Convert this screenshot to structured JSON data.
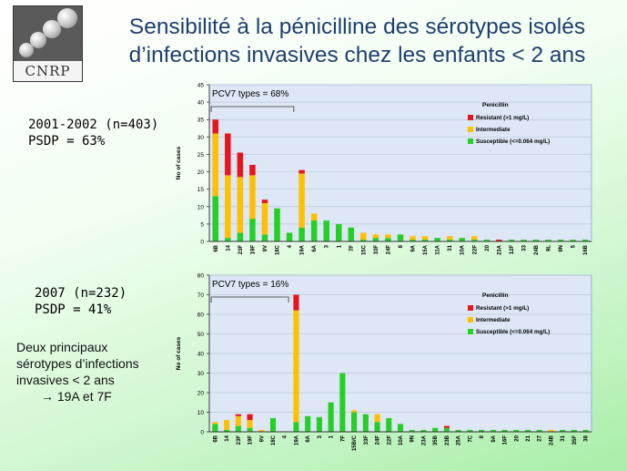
{
  "slide": {
    "title_line1": "Sensibilité à la pénicilline des sérotypes isolés",
    "title_line2": "d’infections invasives chez les enfants < 2 ans",
    "logo_text": "CNRP",
    "period1_label": "2001-2002 (n=403)",
    "period1_psdp": "PSDP = 63%",
    "period2_label": "2007 (n=232)",
    "period2_psdp": "PSDP = 41%",
    "note_lines": [
      "Deux principaux",
      "sérotypes d’infections",
      "invasives < 2 ans"
    ],
    "note_arrow": "→",
    "note_result": "19A et 7F"
  },
  "colors": {
    "resistant": "#e8141e",
    "intermediate": "#ffc000",
    "susceptible": "#25d025",
    "plot_bg": "#dde7f5",
    "title": "#1f3f6f"
  },
  "chart_data": [
    {
      "type": "bar",
      "stacked": true,
      "annotation": "PCV7 types = 68%",
      "legend_title": "Penicillin",
      "legend_position": "top-right",
      "ylabel": "No of cases",
      "ylim": [
        0,
        45
      ],
      "yticks": [
        0,
        5,
        10,
        15,
        20,
        25,
        30,
        35,
        40,
        45
      ],
      "grid": true,
      "categories": [
        "6B",
        "14",
        "23F",
        "19F",
        "9V",
        "18C",
        "4",
        "19A",
        "6A",
        "3",
        "1",
        "7F",
        "15C",
        "33F",
        "24F",
        "8",
        "9A",
        "15A",
        "11A",
        "31",
        "10A",
        "22F",
        "20",
        "23A",
        "12F",
        "33",
        "24B",
        "9L",
        "9N",
        "5",
        "16B"
      ],
      "series": [
        {
          "name": "Resistant (>1 mg/L)",
          "color_key": "resistant",
          "values": [
            4,
            12,
            7,
            3,
            1,
            0,
            0,
            1,
            0,
            0,
            0,
            0,
            0,
            0,
            0,
            0,
            0,
            0,
            0,
            0,
            0,
            0,
            0,
            0.5,
            0,
            0,
            0,
            0,
            0,
            0,
            0
          ]
        },
        {
          "name": "Intermediate",
          "color_key": "intermediate",
          "values": [
            18,
            18,
            16,
            12.5,
            9,
            0,
            0,
            15.5,
            2,
            0,
            0,
            0,
            2,
            1,
            1,
            0,
            1,
            1,
            0,
            1,
            0,
            1,
            0,
            0,
            0,
            0,
            0,
            0,
            0,
            0,
            0
          ]
        },
        {
          "name": "Susceptible (<=0.064 mg/L)",
          "color_key": "susceptible",
          "values": [
            13,
            1,
            2.5,
            6.5,
            2,
            9.5,
            2.5,
            4,
            6,
            6,
            5,
            4,
            0.5,
            1,
            1,
            2,
            0.5,
            0.5,
            1,
            0.5,
            1,
            0.5,
            0.5,
            0,
            0.5,
            0.5,
            0.5,
            0.5,
            0.5,
            0.5,
            0.5
          ]
        }
      ],
      "pcv7_range": [
        "6B",
        "4"
      ]
    },
    {
      "type": "bar",
      "stacked": true,
      "annotation": "PCV7 types = 16%",
      "legend_title": "Penicillin",
      "legend_position": "top-right",
      "ylabel": "No of cases",
      "ylim": [
        0,
        80
      ],
      "yticks": [
        0,
        10,
        20,
        30,
        40,
        50,
        60,
        70,
        80
      ],
      "grid": true,
      "categories": [
        "6B",
        "14",
        "23F",
        "19F",
        "9V",
        "18C",
        "4",
        "19A",
        "6A",
        "3",
        "1",
        "7F",
        "15B/C",
        "33F",
        "24F",
        "22F",
        "10A",
        "9N",
        "23A",
        "35B",
        "23B",
        "25A",
        "7C",
        "8",
        "9A",
        "16F",
        "20",
        "21",
        "27",
        "24B",
        "31",
        "35F",
        "38"
      ],
      "series": [
        {
          "name": "Resistant (>1 mg/L)",
          "color_key": "resistant",
          "values": [
            0,
            0,
            1,
            3,
            0,
            0,
            0,
            8,
            0,
            0,
            0,
            0,
            0,
            0,
            0,
            0,
            0,
            0,
            0,
            0,
            1,
            0,
            0,
            0,
            0,
            0,
            0,
            0,
            0,
            0,
            0,
            0,
            0
          ]
        },
        {
          "name": "Intermediate",
          "color_key": "intermediate",
          "values": [
            1,
            5,
            5,
            4,
            1,
            0,
            0,
            57,
            0,
            0,
            0,
            0,
            1,
            0,
            4,
            0,
            0,
            0,
            0,
            0,
            0,
            0,
            0,
            0,
            0,
            0,
            0,
            0,
            0,
            1,
            0,
            0,
            0
          ]
        },
        {
          "name": "Susceptible (<=0.064 mg/L)",
          "color_key": "susceptible",
          "values": [
            4,
            1,
            3,
            2,
            0,
            7,
            0,
            5,
            8,
            7.5,
            15,
            30,
            10,
            9,
            5,
            7,
            4,
            1,
            1,
            2,
            2,
            1,
            1,
            1,
            1,
            1,
            1,
            1,
            1,
            0,
            1,
            1,
            1
          ]
        }
      ],
      "pcv7_range": [
        "6B",
        "4"
      ]
    }
  ]
}
